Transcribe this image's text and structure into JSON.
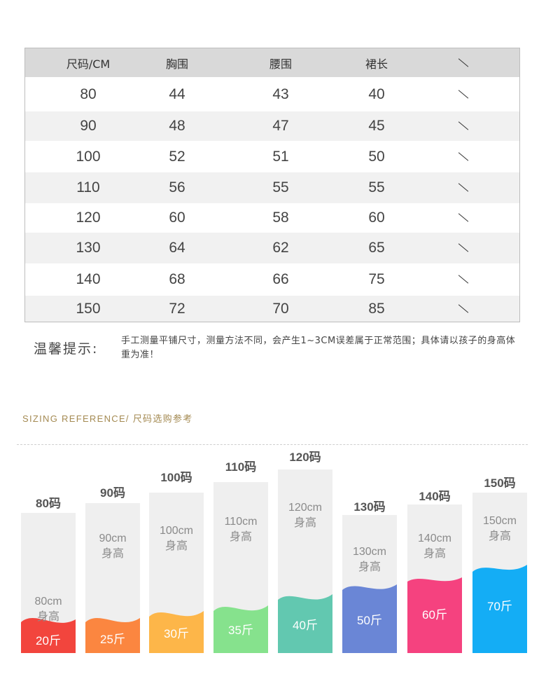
{
  "table": {
    "headers": [
      "尺码/CM",
      "胸围",
      "腰围",
      "裙长",
      "\\"
    ],
    "rows": [
      [
        "80",
        "44",
        "43",
        "40"
      ],
      [
        "90",
        "48",
        "47",
        "45"
      ],
      [
        "100",
        "52",
        "51",
        "50"
      ],
      [
        "110",
        "56",
        "55",
        "55"
      ],
      [
        "120",
        "60",
        "58",
        "60"
      ],
      [
        "130",
        "64",
        "62",
        "65"
      ],
      [
        "140",
        "68",
        "66",
        "75"
      ],
      [
        "150",
        "72",
        "70",
        "85"
      ]
    ]
  },
  "note": {
    "title": "温馨提示:",
    "text": "手工测量平铺尺寸，测量方法不同，会产生1~3CM误差属于正常范围；具体请以孩子的身高体重为准！"
  },
  "reference": {
    "title": "SIZING REFERENCE/ 尺码选购参考"
  },
  "bars": [
    {
      "size": "80码",
      "height": "80cm",
      "height_label": "身高",
      "weight": "20斤",
      "color": "#f2453d"
    },
    {
      "size": "90码",
      "height": "90cm",
      "height_label": "身高",
      "weight": "25斤",
      "color": "#fb8640"
    },
    {
      "size": "100码",
      "height": "100cm",
      "height_label": "身高",
      "weight": "30斤",
      "color": "#fdb649"
    },
    {
      "size": "110码",
      "height": "110cm",
      "height_label": "身高",
      "weight": "35斤",
      "color": "#86e28d"
    },
    {
      "size": "120码",
      "height": "120cm",
      "height_label": "身高",
      "weight": "40斤",
      "color": "#62c8b0"
    },
    {
      "size": "130码",
      "height": "130cm",
      "height_label": "身高",
      "weight": "50斤",
      "color": "#6a86d6"
    },
    {
      "size": "140码",
      "height": "140cm",
      "height_label": "身高",
      "weight": "60斤",
      "color": "#f5427f"
    },
    {
      "size": "150码",
      "height": "150cm",
      "height_label": "身高",
      "weight": "70斤",
      "color": "#14adf5"
    }
  ]
}
